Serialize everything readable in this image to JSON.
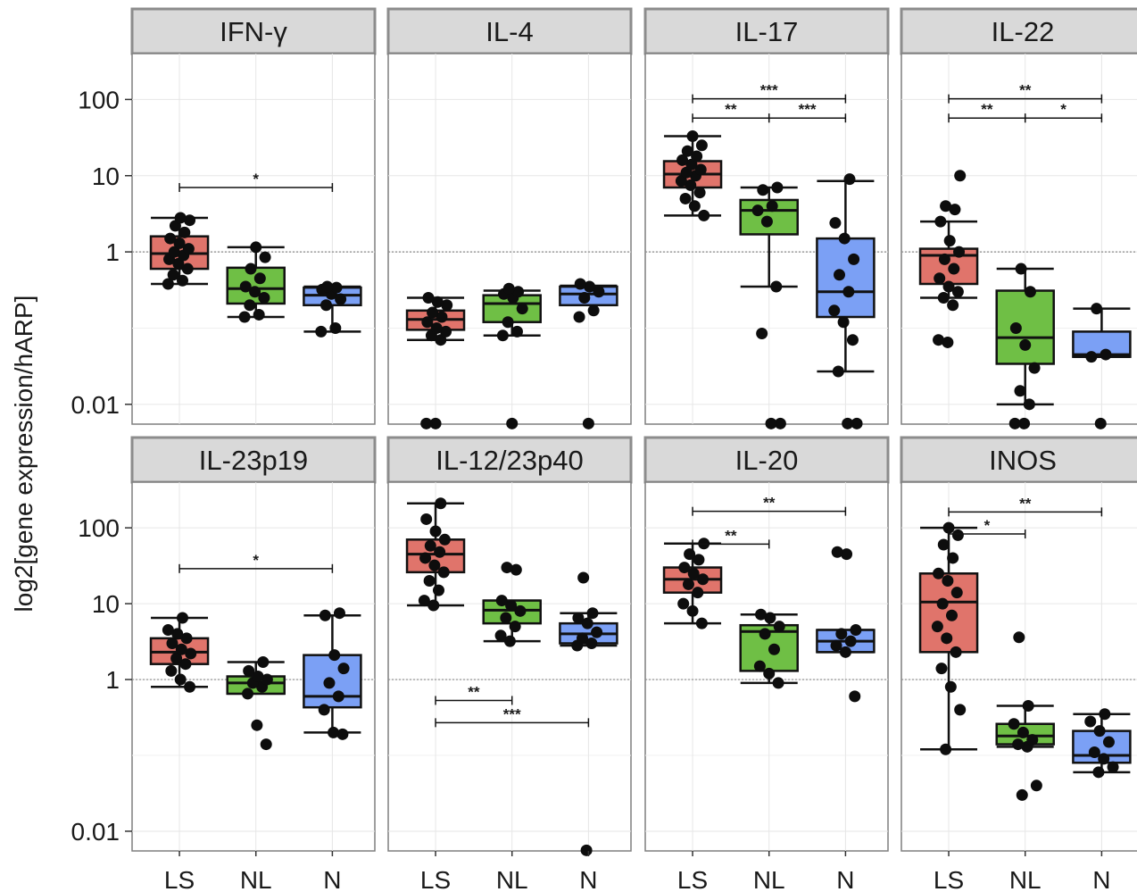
{
  "chart_data": {
    "type": "boxplot",
    "ylabel": "log2[gene expression/hARP]",
    "yscale": "log10",
    "ylim": [
      0.0055,
      400
    ],
    "yticks": [
      {
        "value": 0.01,
        "label": "0.01"
      },
      {
        "value": 1,
        "label": "1"
      },
      {
        "value": 10,
        "label": "10"
      },
      {
        "value": 100,
        "label": "100"
      }
    ],
    "reference_line_y": 1,
    "categories": [
      "LS",
      "NL",
      "N"
    ],
    "colors": {
      "LS": "#e0746b",
      "NL": "#6fbf45",
      "N": "#7ba0f5"
    },
    "grid": true,
    "panels": [
      {
        "title": "IFN-γ",
        "boxes": [
          {
            "group": "LS",
            "whisker_low": 0.38,
            "q1": 0.6,
            "median": 0.95,
            "q3": 1.6,
            "whisker_high": 2.8,
            "points": [
              0.38,
              0.42,
              0.5,
              0.6,
              0.7,
              0.8,
              0.9,
              1.0,
              1.1,
              1.3,
              1.5,
              1.8,
              2.2,
              2.6,
              2.8
            ]
          },
          {
            "group": "NL",
            "whisker_low": 0.14,
            "q1": 0.21,
            "median": 0.33,
            "q3": 0.62,
            "whisker_high": 1.15,
            "points": [
              0.14,
              0.15,
              0.2,
              0.25,
              0.3,
              0.35,
              0.45,
              0.6,
              0.85,
              1.15
            ]
          },
          {
            "group": "N",
            "whisker_low": 0.09,
            "q1": 0.2,
            "median": 0.27,
            "q3": 0.34,
            "whisker_high": 0.35,
            "points": [
              0.09,
              0.1,
              0.2,
              0.24,
              0.28,
              0.32,
              0.34,
              0.35
            ]
          }
        ],
        "significance": [
          {
            "from": "LS",
            "to": "N",
            "label": "*",
            "y": 7.0
          }
        ]
      },
      {
        "title": "IL-4",
        "boxes": [
          {
            "group": "LS",
            "whisker_low": 0.07,
            "q1": 0.095,
            "median": 0.13,
            "q3": 0.17,
            "whisker_high": 0.25,
            "points": [
              0.0056,
              0.0056,
              0.07,
              0.08,
              0.09,
              0.1,
              0.12,
              0.14,
              0.16,
              0.2,
              0.22,
              0.25
            ]
          },
          {
            "group": "NL",
            "whisker_low": 0.08,
            "q1": 0.12,
            "median": 0.21,
            "q3": 0.27,
            "whisker_high": 0.31,
            "points": [
              0.0056,
              0.08,
              0.09,
              0.12,
              0.18,
              0.25,
              0.28,
              0.3,
              0.33
            ]
          },
          {
            "group": "N",
            "whisker_low": 0.2,
            "q1": 0.2,
            "median": 0.28,
            "q3": 0.35,
            "whisker_high": 0.36,
            "points": [
              0.0056,
              0.14,
              0.17,
              0.25,
              0.3,
              0.35,
              0.38
            ]
          }
        ],
        "significance": []
      },
      {
        "title": "IL-17",
        "boxes": [
          {
            "group": "LS",
            "whisker_low": 3.0,
            "q1": 7.0,
            "median": 10.5,
            "q3": 15.5,
            "whisker_high": 33,
            "points": [
              3.0,
              4.0,
              5.0,
              6.0,
              7.5,
              8.5,
              10,
              11,
              12,
              14,
              16,
              18,
              21,
              25,
              33
            ]
          },
          {
            "group": "NL",
            "whisker_low": 0.35,
            "q1": 1.7,
            "median": 3.5,
            "q3": 4.8,
            "whisker_high": 7.0,
            "points": [
              0.0056,
              0.0056,
              0.085,
              0.35,
              2.5,
              3.5,
              4.0,
              6.5,
              7.0
            ]
          },
          {
            "group": "N",
            "whisker_low": 0.027,
            "q1": 0.14,
            "median": 0.3,
            "q3": 1.5,
            "whisker_high": 8.5,
            "points": [
              0.0056,
              0.0056,
              0.027,
              0.07,
              0.12,
              0.17,
              0.3,
              0.5,
              0.8,
              1.5,
              2.4,
              9.0
            ]
          }
        ],
        "significance": [
          {
            "from": "LS",
            "to": "NL",
            "label": "**",
            "y": 57
          },
          {
            "from": "NL",
            "to": "N",
            "label": "***",
            "y": 57
          },
          {
            "from": "LS",
            "to": "N",
            "label": "***",
            "y": 102
          }
        ]
      },
      {
        "title": "IL-22",
        "boxes": [
          {
            "group": "LS",
            "whisker_low": 0.25,
            "q1": 0.38,
            "median": 0.9,
            "q3": 1.1,
            "whisker_high": 2.5,
            "points": [
              0.065,
              0.07,
              0.2,
              0.25,
              0.3,
              0.35,
              0.45,
              0.6,
              0.8,
              1.0,
              1.4,
              2.5,
              3.6,
              4.0,
              10.0
            ]
          },
          {
            "group": "NL",
            "whisker_low": 0.01,
            "q1": 0.034,
            "median": 0.075,
            "q3": 0.31,
            "whisker_high": 0.6,
            "points": [
              0.0056,
              0.0056,
              0.01,
              0.015,
              0.03,
              0.06,
              0.1,
              0.3,
              0.6
            ]
          },
          {
            "group": "N",
            "whisker_low": 0.042,
            "q1": 0.042,
            "median": 0.045,
            "q3": 0.09,
            "whisker_high": 0.18,
            "points": [
              0.0056,
              0.042,
              0.045,
              0.18
            ]
          }
        ],
        "significance": [
          {
            "from": "LS",
            "to": "NL",
            "label": "**",
            "y": 57
          },
          {
            "from": "NL",
            "to": "N",
            "label": "*",
            "y": 57
          },
          {
            "from": "LS",
            "to": "N",
            "label": "**",
            "y": 102
          }
        ]
      },
      {
        "title": "IL-23p19",
        "boxes": [
          {
            "group": "LS",
            "whisker_low": 0.8,
            "q1": 1.6,
            "median": 2.3,
            "q3": 3.5,
            "whisker_high": 6.5,
            "points": [
              0.8,
              1.0,
              1.3,
              1.6,
              1.9,
              2.2,
              2.5,
              3.0,
              3.5,
              4.0,
              4.5,
              6.5
            ]
          },
          {
            "group": "NL",
            "whisker_low": 0.65,
            "q1": 0.65,
            "median": 0.9,
            "q3": 1.1,
            "whisker_high": 1.7,
            "points": [
              0.14,
              0.25,
              0.65,
              0.8,
              0.9,
              1.0,
              1.1,
              1.3,
              1.7
            ]
          },
          {
            "group": "N",
            "whisker_low": 0.2,
            "q1": 0.43,
            "median": 0.6,
            "q3": 2.1,
            "whisker_high": 7.0,
            "points": [
              0.19,
              0.2,
              0.4,
              0.6,
              0.9,
              1.4,
              2.1,
              7.0,
              7.5
            ]
          }
        ],
        "significance": [
          {
            "from": "LS",
            "to": "N",
            "label": "*",
            "y": 29
          }
        ]
      },
      {
        "title": "IL-12/23p40",
        "boxes": [
          {
            "group": "LS",
            "whisker_low": 9.5,
            "q1": 26,
            "median": 45,
            "q3": 70,
            "whisker_high": 210,
            "points": [
              9.5,
              11,
              15,
              20,
              26,
              32,
              40,
              48,
              58,
              70,
              90,
              130,
              210
            ]
          },
          {
            "group": "NL",
            "whisker_low": 3.2,
            "q1": 5.5,
            "median": 8.2,
            "q3": 11,
            "whisker_high": 11,
            "points": [
              3.2,
              3.8,
              5.0,
              6.5,
              8.0,
              9.5,
              11,
              28,
              30
            ]
          },
          {
            "group": "N",
            "whisker_low": 2.8,
            "q1": 3.0,
            "median": 4.0,
            "q3": 5.5,
            "whisker_high": 7.5,
            "points": [
              0.0056,
              2.8,
              3.0,
              3.5,
              4.2,
              5.5,
              6.5,
              7.5,
              22
            ]
          }
        ],
        "significance": [
          {
            "from": "LS",
            "to": "NL",
            "label": "**",
            "y": 0.53
          },
          {
            "from": "LS",
            "to": "N",
            "label": "***",
            "y": 0.27
          }
        ]
      },
      {
        "title": "IL-20",
        "boxes": [
          {
            "group": "LS",
            "whisker_low": 5.5,
            "q1": 14,
            "median": 21,
            "q3": 30,
            "whisker_high": 62,
            "points": [
              5.5,
              8,
              10,
              14,
              18,
              21,
              25,
              30,
              38,
              45,
              62
            ]
          },
          {
            "group": "NL",
            "whisker_low": 0.9,
            "q1": 1.3,
            "median": 4.3,
            "q3": 5.2,
            "whisker_high": 7.2,
            "points": [
              0.9,
              1.2,
              1.5,
              2.5,
              4.0,
              5.0,
              6.5,
              7.2
            ]
          },
          {
            "group": "N",
            "whisker_low": 2.3,
            "q1": 2.3,
            "median": 3.2,
            "q3": 4.5,
            "whisker_high": 4.5,
            "points": [
              0.6,
              2.3,
              2.8,
              3.2,
              4.0,
              4.5,
              45,
              48
            ]
          }
        ],
        "significance": [
          {
            "from": "LS",
            "to": "NL",
            "label": "**",
            "y": 61
          },
          {
            "from": "LS",
            "to": "N",
            "label": "**",
            "y": 165
          }
        ]
      },
      {
        "title": "INOS",
        "boxes": [
          {
            "group": "LS",
            "whisker_low": 0.12,
            "q1": 2.3,
            "median": 10.5,
            "q3": 25,
            "whisker_high": 100,
            "points": [
              0.12,
              0.4,
              0.8,
              1.4,
              2.3,
              3.5,
              5.0,
              7.0,
              10,
              14,
              20,
              25,
              40,
              60,
              80,
              100
            ]
          },
          {
            "group": "NL",
            "whisker_low": 0.13,
            "q1": 0.14,
            "median": 0.18,
            "q3": 0.26,
            "whisker_high": 0.45,
            "points": [
              0.03,
              0.04,
              0.13,
              0.14,
              0.16,
              0.2,
              0.26,
              0.45,
              3.6
            ]
          },
          {
            "group": "N",
            "whisker_low": 0.06,
            "q1": 0.08,
            "median": 0.1,
            "q3": 0.21,
            "whisker_high": 0.35,
            "points": [
              0.06,
              0.07,
              0.09,
              0.11,
              0.15,
              0.21,
              0.28,
              0.35
            ]
          }
        ],
        "significance": [
          {
            "from": "LS",
            "to": "NL",
            "label": "*",
            "y": 83
          },
          {
            "from": "LS",
            "to": "N",
            "label": "**",
            "y": 162
          }
        ]
      }
    ]
  }
}
